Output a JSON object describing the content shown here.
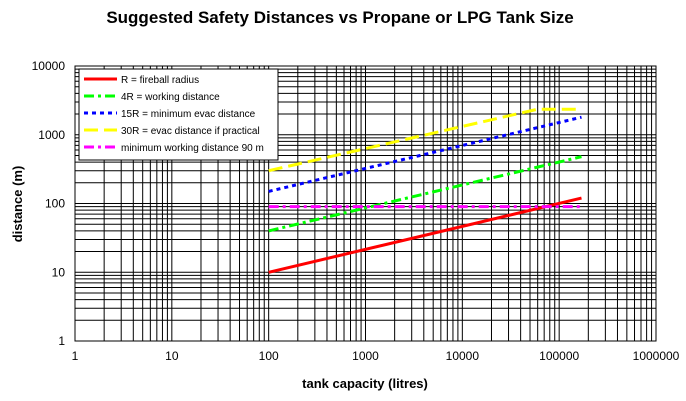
{
  "chart_data": {
    "type": "line",
    "title": "Suggested Safety Distances vs Propane or LPG Tank Size",
    "xlabel": "tank capacity (litres)",
    "ylabel": "distance  (m)",
    "x_scale": "log",
    "y_scale": "log",
    "xlim": [
      1,
      1000000
    ],
    "ylim": [
      1,
      10000
    ],
    "x_ticks": [
      "1",
      "10",
      "100",
      "1000",
      "10000",
      "100000",
      "1000000"
    ],
    "y_ticks": [
      "1",
      "10",
      "100",
      "1000",
      "10000"
    ],
    "grid": true,
    "legend_position": "top-left",
    "series": [
      {
        "name": "R = fireball radius",
        "color": "#ff0000",
        "dash": "solid",
        "x": [
          100,
          170000
        ],
        "y": [
          10,
          120
        ]
      },
      {
        "name": "4R = working distance",
        "color": "#00ff00",
        "dash": "dash-dot",
        "x": [
          100,
          170000
        ],
        "y": [
          40,
          480
        ]
      },
      {
        "name": "15R = minimum evac distance",
        "color": "#0000ff",
        "dash": "dotted",
        "x": [
          100,
          170000
        ],
        "y": [
          150,
          1800
        ]
      },
      {
        "name": "30R = evac distance if practical",
        "color": "#ffff00",
        "dash": "long-dash",
        "x": [
          100,
          60000,
          170000
        ],
        "y": [
          300,
          2350,
          2350
        ]
      },
      {
        "name": "minimum working distance  90 m",
        "color": "#ff00ff",
        "dash": "dash-dot",
        "x": [
          100,
          170000
        ],
        "y": [
          90,
          90
        ]
      }
    ]
  }
}
